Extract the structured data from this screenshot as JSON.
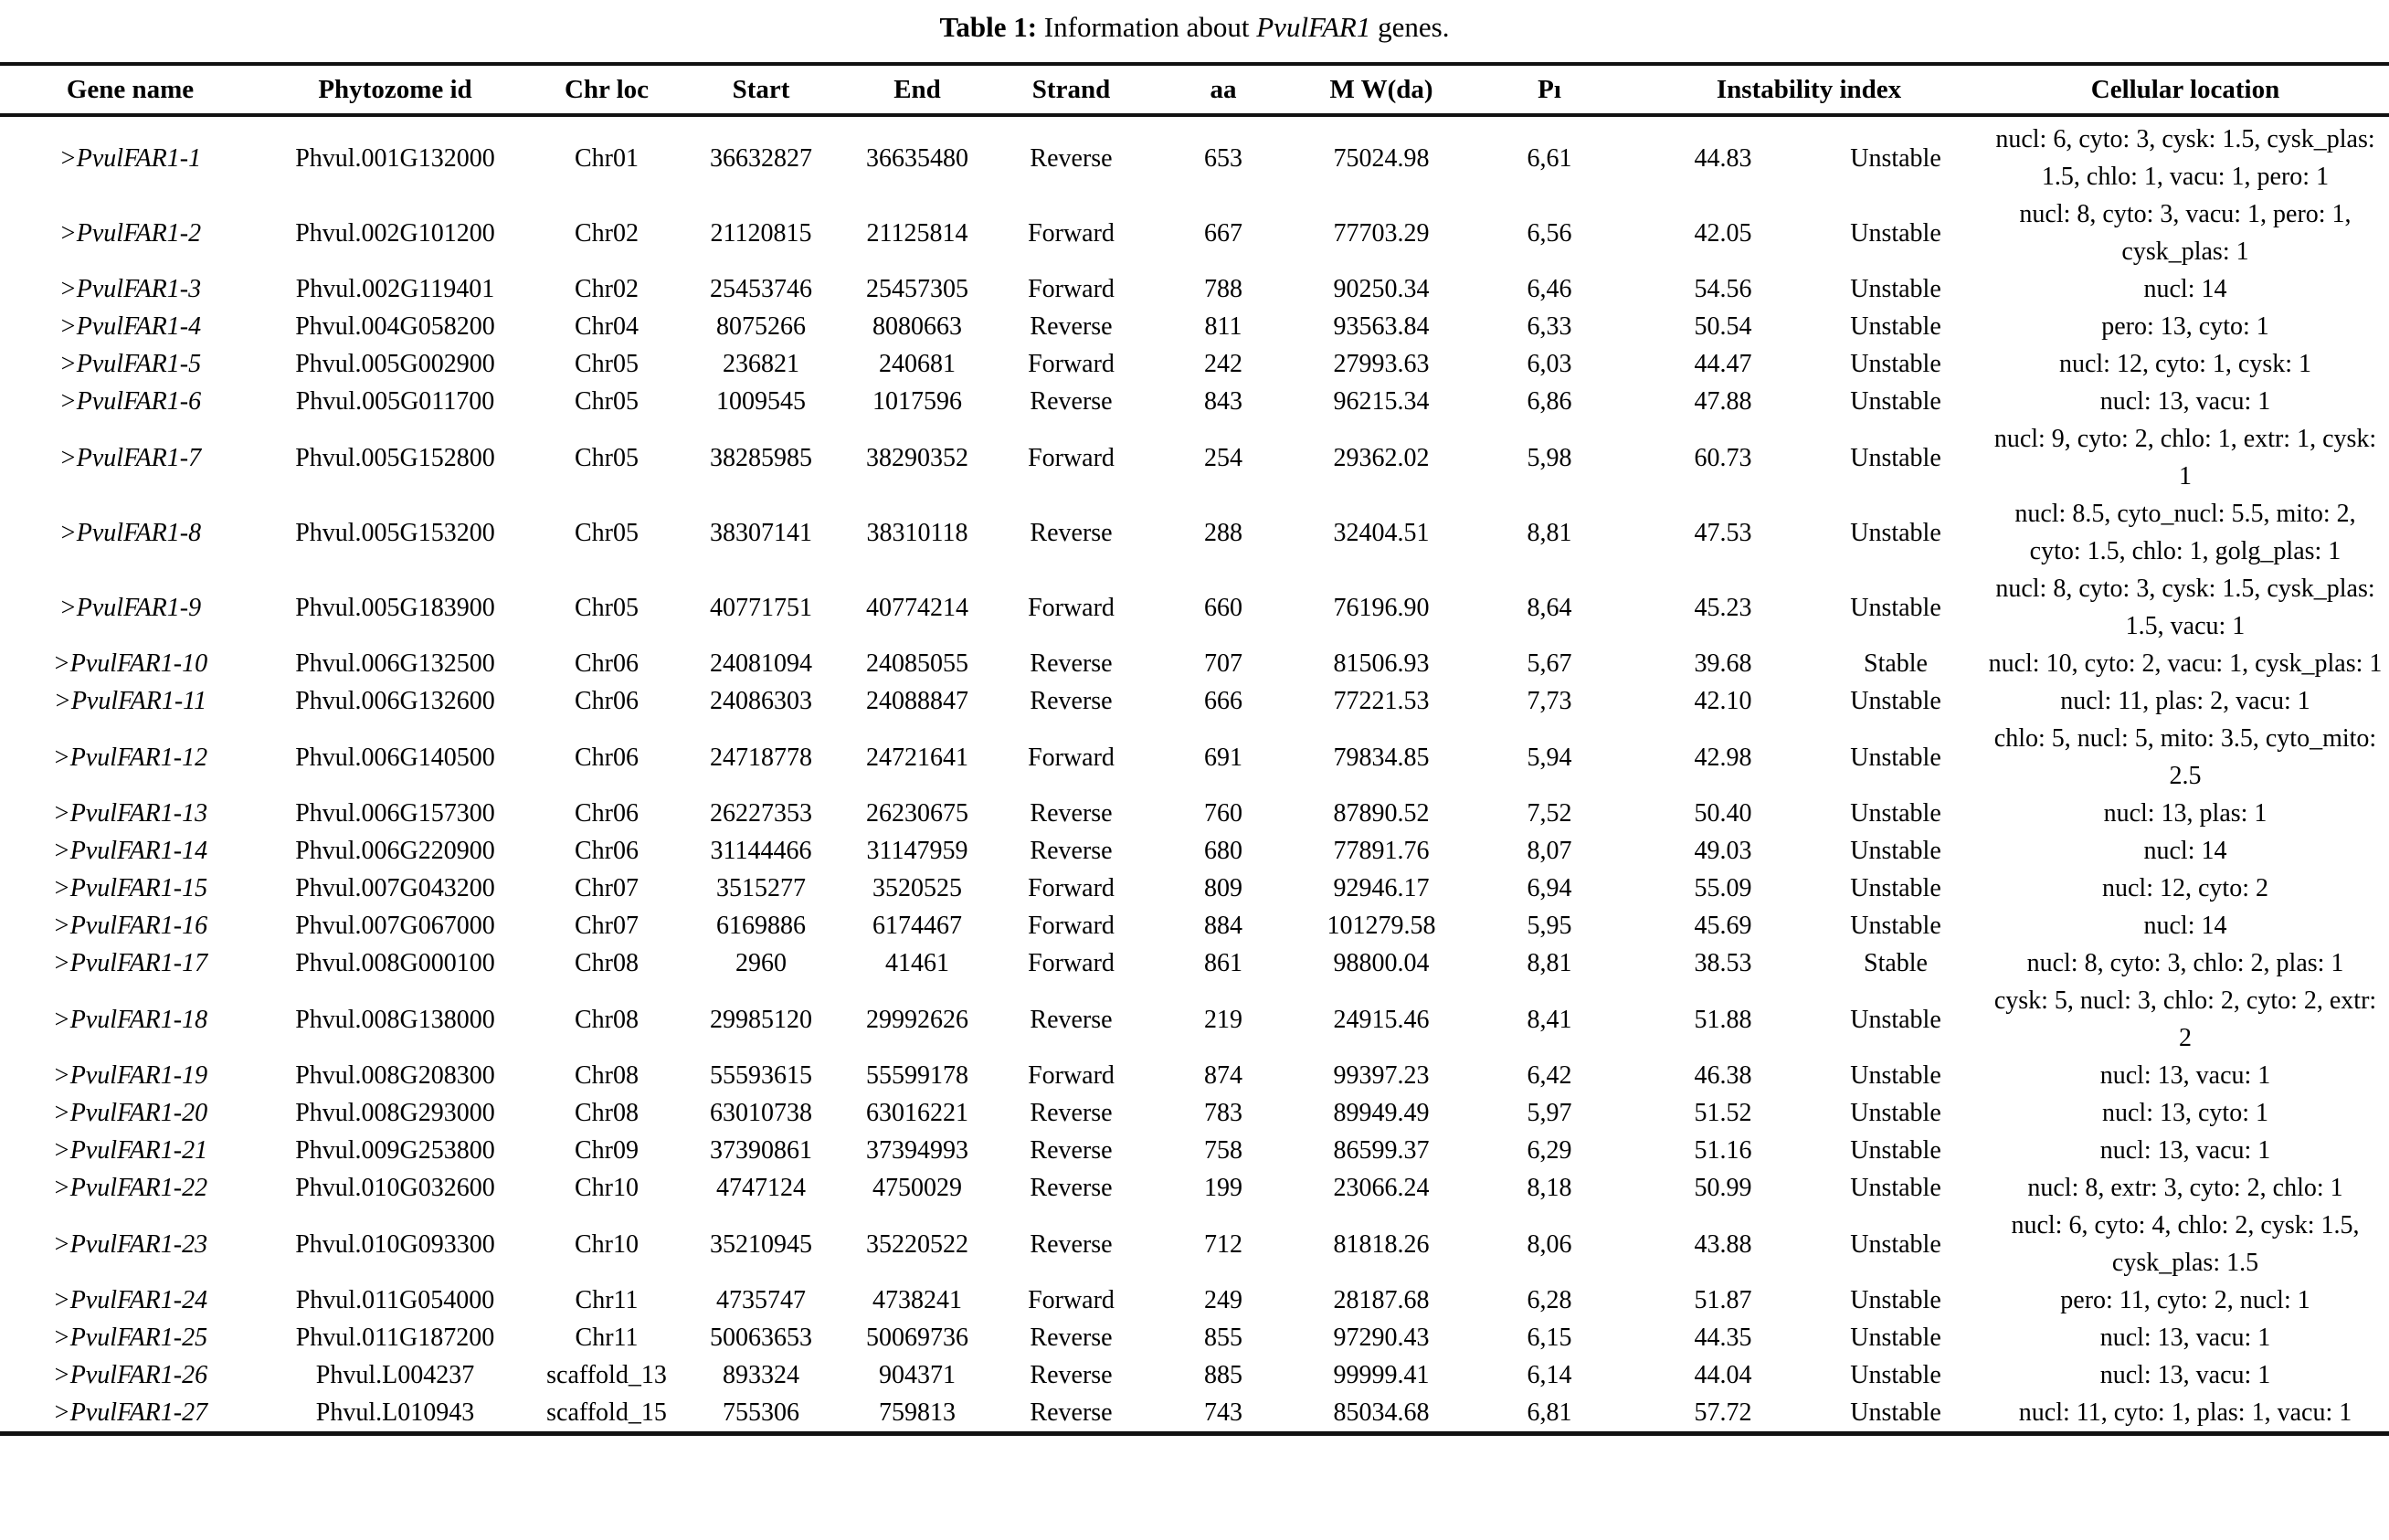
{
  "title": {
    "prefix_bold": "Table 1:",
    "mid": " Information about ",
    "gene_italic": "PvulFAR1",
    "suffix": " genes."
  },
  "table": {
    "headers": [
      {
        "label": "Gene name"
      },
      {
        "label": "Phytozome id"
      },
      {
        "label": "Chr loc"
      },
      {
        "label": "Start"
      },
      {
        "label": "End"
      },
      {
        "label": "Strand"
      },
      {
        "label": "aa"
      },
      {
        "label": "M W(da)"
      },
      {
        "label": "Pı"
      },
      {
        "label": "Instability index",
        "colspan": 2
      },
      {
        "label": "Cellular location"
      }
    ],
    "rows": [
      {
        "gene_name": ">PvulFAR1-1",
        "phytozome_id": "Phvul.001G132000",
        "chr_loc": "Chr01",
        "start": "36632827",
        "end": "36635480",
        "strand": "Reverse",
        "aa": "653",
        "mw_da": "75024.98",
        "pi": "6,61",
        "instability_index": "44.83",
        "stability": "Unstable",
        "cellular_location": "nucl: 6, cyto: 3, cysk: 1.5, cysk_plas: 1.5, chlo: 1, vacu: 1, pero: 1"
      },
      {
        "gene_name": ">PvulFAR1-2",
        "phytozome_id": "Phvul.002G101200",
        "chr_loc": "Chr02",
        "start": "21120815",
        "end": "21125814",
        "strand": "Forward",
        "aa": "667",
        "mw_da": "77703.29",
        "pi": "6,56",
        "instability_index": "42.05",
        "stability": "Unstable",
        "cellular_location": "nucl: 8, cyto: 3, vacu: 1, pero: 1, cysk_plas: 1"
      },
      {
        "gene_name": ">PvulFAR1-3",
        "phytozome_id": "Phvul.002G119401",
        "chr_loc": "Chr02",
        "start": "25453746",
        "end": "25457305",
        "strand": "Forward",
        "aa": "788",
        "mw_da": "90250.34",
        "pi": "6,46",
        "instability_index": "54.56",
        "stability": "Unstable",
        "cellular_location": "nucl: 14"
      },
      {
        "gene_name": ">PvulFAR1-4",
        "phytozome_id": "Phvul.004G058200",
        "chr_loc": "Chr04",
        "start": "8075266",
        "end": "8080663",
        "strand": "Reverse",
        "aa": "811",
        "mw_da": "93563.84",
        "pi": "6,33",
        "instability_index": "50.54",
        "stability": "Unstable",
        "cellular_location": "pero: 13, cyto: 1"
      },
      {
        "gene_name": ">PvulFAR1-5",
        "phytozome_id": "Phvul.005G002900",
        "chr_loc": "Chr05",
        "start": "236821",
        "end": "240681",
        "strand": "Forward",
        "aa": "242",
        "mw_da": "27993.63",
        "pi": "6,03",
        "instability_index": "44.47",
        "stability": "Unstable",
        "cellular_location": "nucl: 12, cyto: 1, cysk: 1"
      },
      {
        "gene_name": ">PvulFAR1-6",
        "phytozome_id": "Phvul.005G011700",
        "chr_loc": "Chr05",
        "start": "1009545",
        "end": "1017596",
        "strand": "Reverse",
        "aa": "843",
        "mw_da": "96215.34",
        "pi": "6,86",
        "instability_index": "47.88",
        "stability": "Unstable",
        "cellular_location": "nucl: 13, vacu: 1"
      },
      {
        "gene_name": ">PvulFAR1-7",
        "phytozome_id": "Phvul.005G152800",
        "chr_loc": "Chr05",
        "start": "38285985",
        "end": "38290352",
        "strand": "Forward",
        "aa": "254",
        "mw_da": "29362.02",
        "pi": "5,98",
        "instability_index": "60.73",
        "stability": "Unstable",
        "cellular_location": "nucl: 9, cyto: 2, chlo: 1, extr: 1, cysk: 1"
      },
      {
        "gene_name": ">PvulFAR1-8",
        "phytozome_id": "Phvul.005G153200",
        "chr_loc": "Chr05",
        "start": "38307141",
        "end": "38310118",
        "strand": "Reverse",
        "aa": "288",
        "mw_da": "32404.51",
        "pi": "8,81",
        "instability_index": "47.53",
        "stability": "Unstable",
        "cellular_location": "nucl: 8.5, cyto_nucl: 5.5, mito: 2, cyto: 1.5, chlo: 1, golg_plas: 1"
      },
      {
        "gene_name": ">PvulFAR1-9",
        "phytozome_id": "Phvul.005G183900",
        "chr_loc": "Chr05",
        "start": "40771751",
        "end": "40774214",
        "strand": "Forward",
        "aa": "660",
        "mw_da": "76196.90",
        "pi": "8,64",
        "instability_index": "45.23",
        "stability": "Unstable",
        "cellular_location": "nucl: 8, cyto: 3, cysk: 1.5, cysk_plas: 1.5, vacu: 1"
      },
      {
        "gene_name": ">PvulFAR1-10",
        "phytozome_id": "Phvul.006G132500",
        "chr_loc": "Chr06",
        "start": "24081094",
        "end": "24085055",
        "strand": "Reverse",
        "aa": "707",
        "mw_da": "81506.93",
        "pi": "5,67",
        "instability_index": "39.68",
        "stability": "Stable",
        "cellular_location": "nucl: 10, cyto: 2, vacu: 1, cysk_plas: 1"
      },
      {
        "gene_name": ">PvulFAR1-11",
        "phytozome_id": "Phvul.006G132600",
        "chr_loc": "Chr06",
        "start": "24086303",
        "end": "24088847",
        "strand": "Reverse",
        "aa": "666",
        "mw_da": "77221.53",
        "pi": "7,73",
        "instability_index": "42.10",
        "stability": "Unstable",
        "cellular_location": "nucl: 11, plas: 2, vacu: 1"
      },
      {
        "gene_name": ">PvulFAR1-12",
        "phytozome_id": "Phvul.006G140500",
        "chr_loc": "Chr06",
        "start": "24718778",
        "end": "24721641",
        "strand": "Forward",
        "aa": "691",
        "mw_da": "79834.85",
        "pi": "5,94",
        "instability_index": "42.98",
        "stability": "Unstable",
        "cellular_location": "chlo: 5, nucl: 5, mito: 3.5, cyto_mito: 2.5"
      },
      {
        "gene_name": ">PvulFAR1-13",
        "phytozome_id": "Phvul.006G157300",
        "chr_loc": "Chr06",
        "start": "26227353",
        "end": "26230675",
        "strand": "Reverse",
        "aa": "760",
        "mw_da": "87890.52",
        "pi": "7,52",
        "instability_index": "50.40",
        "stability": "Unstable",
        "cellular_location": "nucl: 13, plas: 1"
      },
      {
        "gene_name": ">PvulFAR1-14",
        "phytozome_id": "Phvul.006G220900",
        "chr_loc": "Chr06",
        "start": "31144466",
        "end": "31147959",
        "strand": "Reverse",
        "aa": "680",
        "mw_da": "77891.76",
        "pi": "8,07",
        "instability_index": "49.03",
        "stability": "Unstable",
        "cellular_location": "nucl: 14"
      },
      {
        "gene_name": ">PvulFAR1-15",
        "phytozome_id": "Phvul.007G043200",
        "chr_loc": "Chr07",
        "start": "3515277",
        "end": "3520525",
        "strand": "Forward",
        "aa": "809",
        "mw_da": "92946.17",
        "pi": "6,94",
        "instability_index": "55.09",
        "stability": "Unstable",
        "cellular_location": "nucl: 12, cyto: 2"
      },
      {
        "gene_name": ">PvulFAR1-16",
        "phytozome_id": "Phvul.007G067000",
        "chr_loc": "Chr07",
        "start": "6169886",
        "end": "6174467",
        "strand": "Forward",
        "aa": "884",
        "mw_da": "101279.58",
        "pi": "5,95",
        "instability_index": "45.69",
        "stability": "Unstable",
        "cellular_location": "nucl: 14"
      },
      {
        "gene_name": ">PvulFAR1-17",
        "phytozome_id": "Phvul.008G000100",
        "chr_loc": "Chr08",
        "start": "2960",
        "end": "41461",
        "strand": "Forward",
        "aa": "861",
        "mw_da": "98800.04",
        "pi": "8,81",
        "instability_index": "38.53",
        "stability": "Stable",
        "cellular_location": "nucl: 8, cyto: 3, chlo: 2, plas: 1"
      },
      {
        "gene_name": ">PvulFAR1-18",
        "phytozome_id": "Phvul.008G138000",
        "chr_loc": "Chr08",
        "start": "29985120",
        "end": "29992626",
        "strand": "Reverse",
        "aa": "219",
        "mw_da": "24915.46",
        "pi": "8,41",
        "instability_index": "51.88",
        "stability": "Unstable",
        "cellular_location": "cysk: 5, nucl: 3, chlo: 2, cyto: 2, extr: 2"
      },
      {
        "gene_name": ">PvulFAR1-19",
        "phytozome_id": "Phvul.008G208300",
        "chr_loc": "Chr08",
        "start": "55593615",
        "end": "55599178",
        "strand": "Forward",
        "aa": "874",
        "mw_da": "99397.23",
        "pi": "6,42",
        "instability_index": "46.38",
        "stability": "Unstable",
        "cellular_location": "nucl: 13, vacu: 1"
      },
      {
        "gene_name": ">PvulFAR1-20",
        "phytozome_id": "Phvul.008G293000",
        "chr_loc": "Chr08",
        "start": "63010738",
        "end": "63016221",
        "strand": "Reverse",
        "aa": "783",
        "mw_da": "89949.49",
        "pi": "5,97",
        "instability_index": "51.52",
        "stability": "Unstable",
        "cellular_location": "nucl: 13, cyto: 1"
      },
      {
        "gene_name": ">PvulFAR1-21",
        "phytozome_id": "Phvul.009G253800",
        "chr_loc": "Chr09",
        "start": "37390861",
        "end": "37394993",
        "strand": "Reverse",
        "aa": "758",
        "mw_da": "86599.37",
        "pi": "6,29",
        "instability_index": "51.16",
        "stability": "Unstable",
        "cellular_location": "nucl: 13, vacu: 1"
      },
      {
        "gene_name": ">PvulFAR1-22",
        "phytozome_id": "Phvul.010G032600",
        "chr_loc": "Chr10",
        "start": "4747124",
        "end": "4750029",
        "strand": "Reverse",
        "aa": "199",
        "mw_da": "23066.24",
        "pi": "8,18",
        "instability_index": "50.99",
        "stability": "Unstable",
        "cellular_location": "nucl: 8, extr: 3, cyto: 2, chlo: 1"
      },
      {
        "gene_name": ">PvulFAR1-23",
        "phytozome_id": "Phvul.010G093300",
        "chr_loc": "Chr10",
        "start": "35210945",
        "end": "35220522",
        "strand": "Reverse",
        "aa": "712",
        "mw_da": "81818.26",
        "pi": "8,06",
        "instability_index": "43.88",
        "stability": "Unstable",
        "cellular_location": "nucl: 6, cyto: 4, chlo: 2, cysk: 1.5, cysk_plas: 1.5"
      },
      {
        "gene_name": ">PvulFAR1-24",
        "phytozome_id": "Phvul.011G054000",
        "chr_loc": "Chr11",
        "start": "4735747",
        "end": "4738241",
        "strand": "Forward",
        "aa": "249",
        "mw_da": "28187.68",
        "pi": "6,28",
        "instability_index": "51.87",
        "stability": "Unstable",
        "cellular_location": "pero: 11, cyto: 2, nucl: 1"
      },
      {
        "gene_name": ">PvulFAR1-25",
        "phytozome_id": "Phvul.011G187200",
        "chr_loc": "Chr11",
        "start": "50063653",
        "end": "50069736",
        "strand": "Reverse",
        "aa": "855",
        "mw_da": "97290.43",
        "pi": "6,15",
        "instability_index": "44.35",
        "stability": "Unstable",
        "cellular_location": "nucl: 13, vacu: 1"
      },
      {
        "gene_name": ">PvulFAR1-26",
        "phytozome_id": "Phvul.L004237",
        "chr_loc": "scaffold_13",
        "start": "893324",
        "end": "904371",
        "strand": "Reverse",
        "aa": "885",
        "mw_da": "99999.41",
        "pi": "6,14",
        "instability_index": "44.04",
        "stability": "Unstable",
        "cellular_location": "nucl: 13, vacu: 1"
      },
      {
        "gene_name": ">PvulFAR1-27",
        "phytozome_id": "Phvul.L010943",
        "chr_loc": "scaffold_15",
        "start": "755306",
        "end": "759813",
        "strand": "Reverse",
        "aa": "743",
        "mw_da": "85034.68",
        "pi": "6,81",
        "instability_index": "57.72",
        "stability": "Unstable",
        "cellular_location": "nucl: 11, cyto: 1, plas: 1, vacu: 1"
      }
    ]
  }
}
